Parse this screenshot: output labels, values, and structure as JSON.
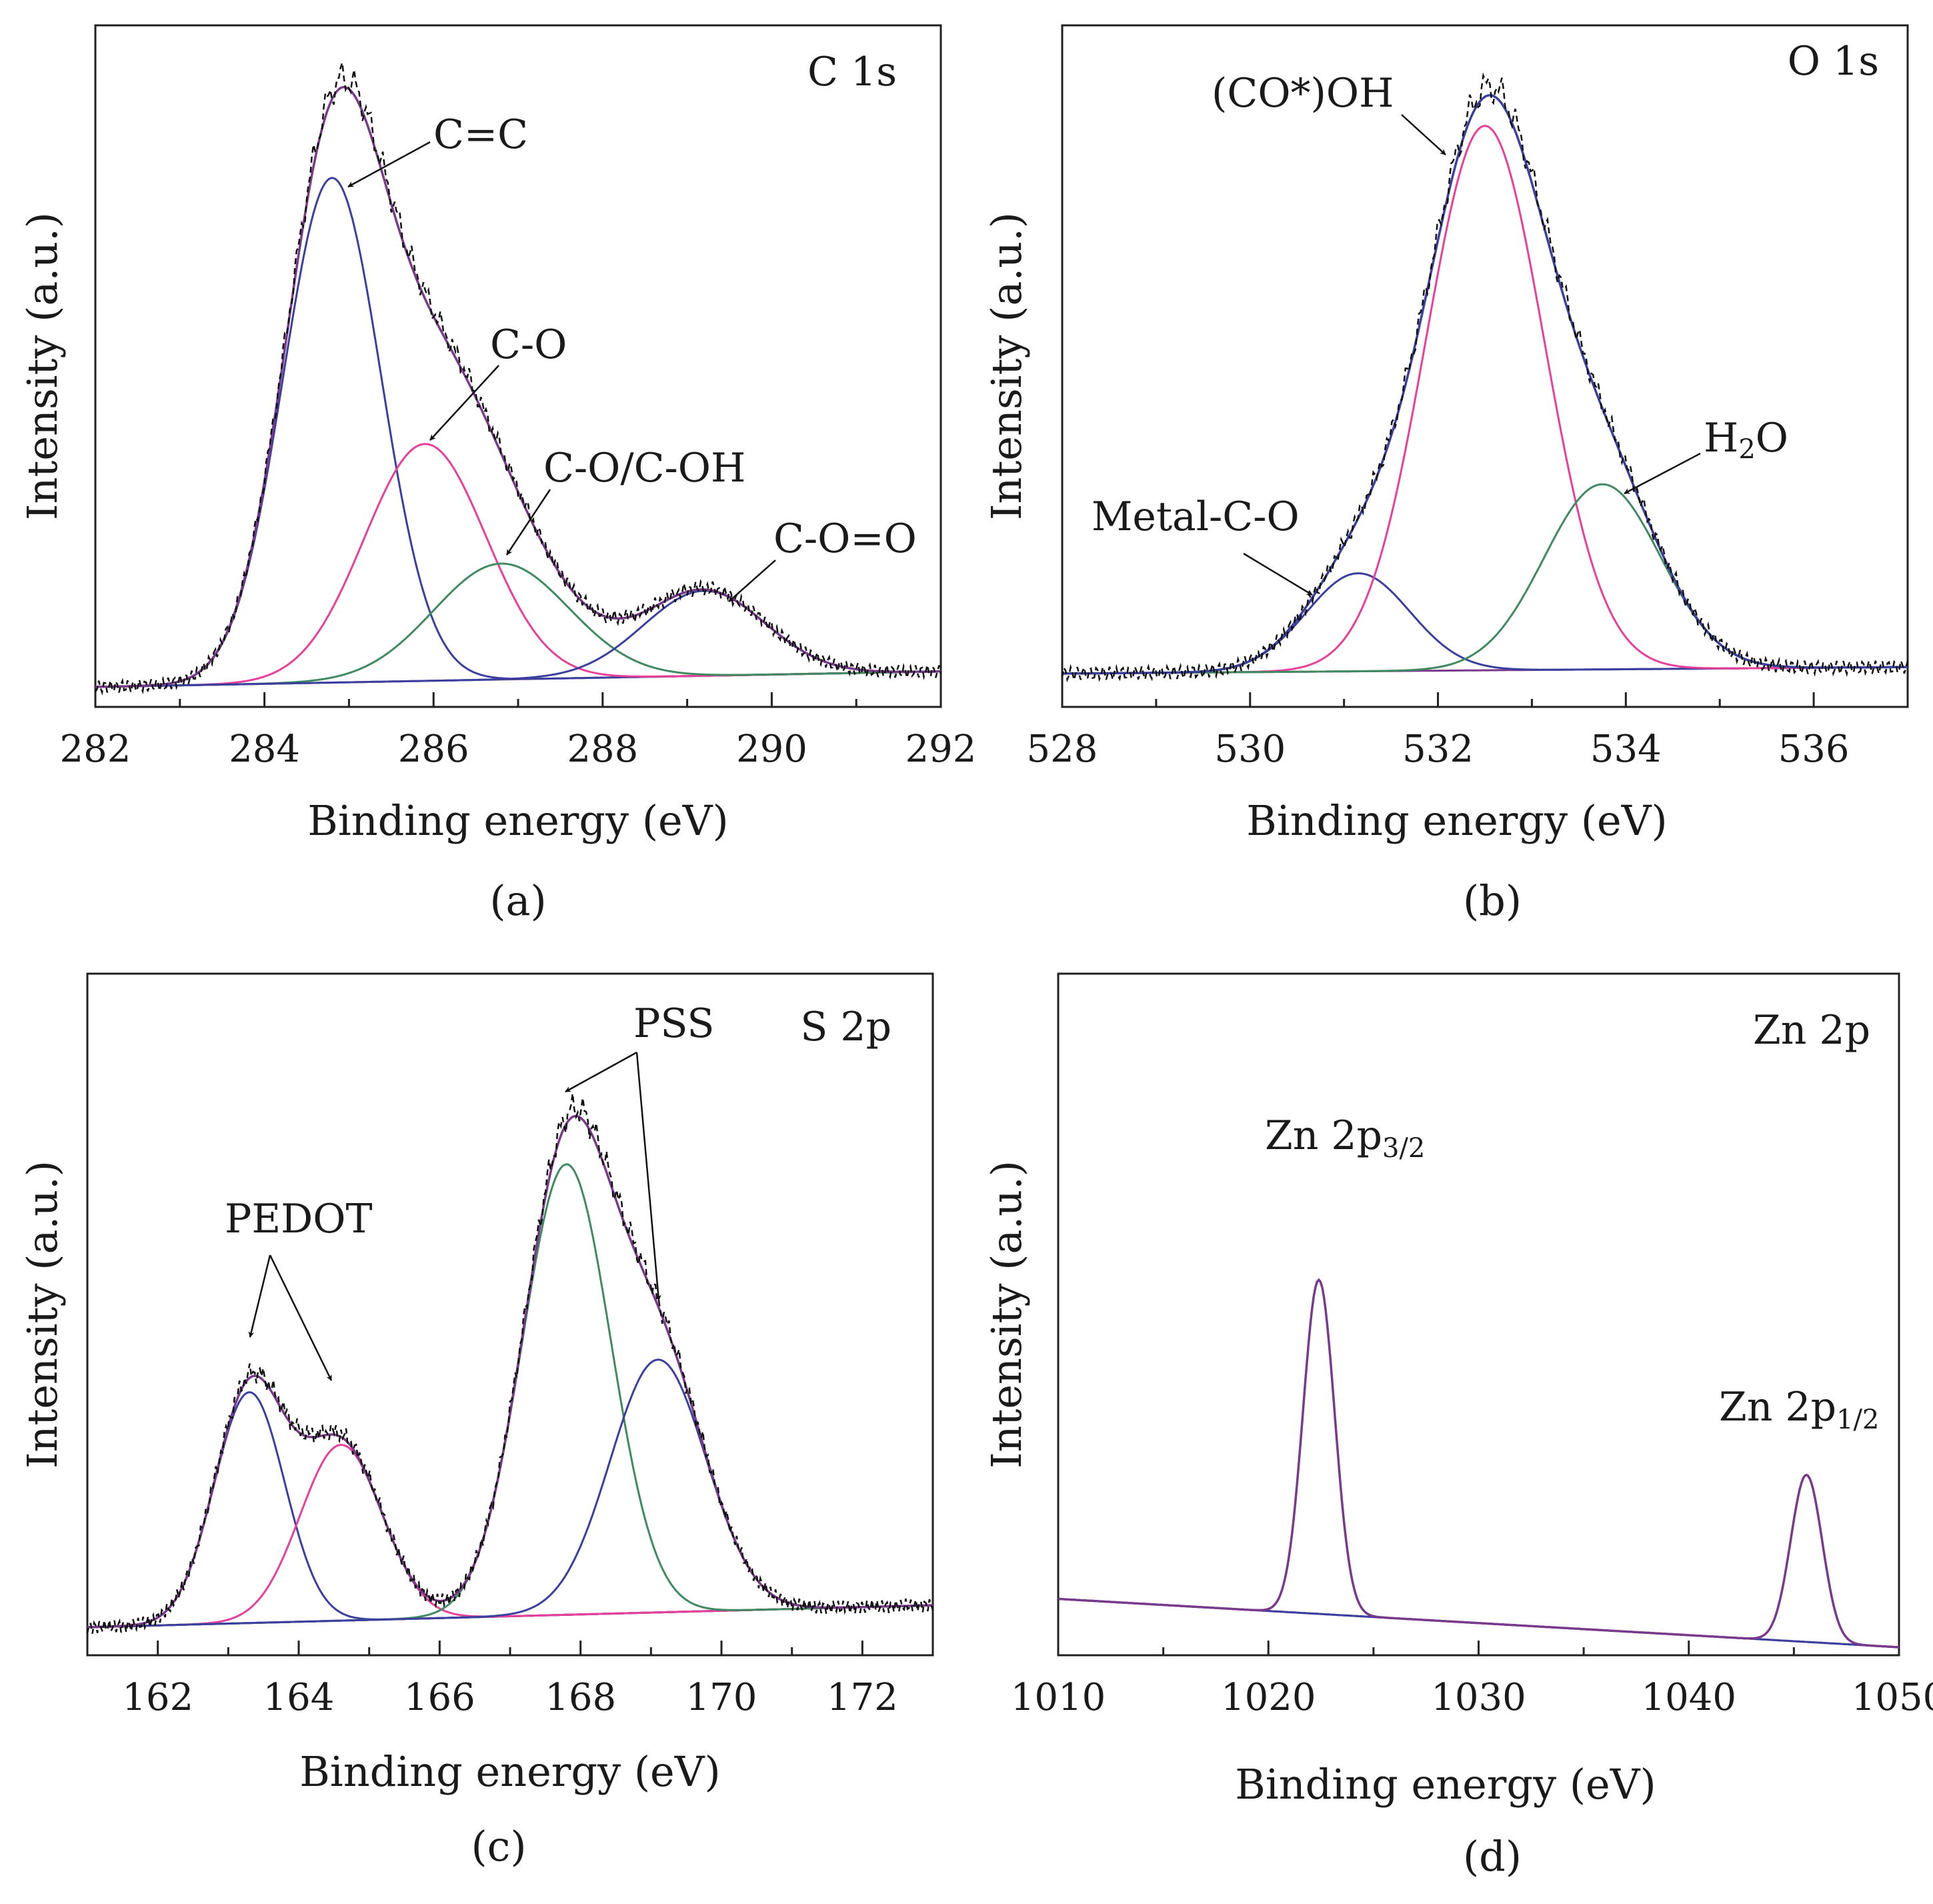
{
  "chart_data": [
    {
      "panel_id": "a",
      "type": "line",
      "corner_label": "C 1s",
      "panel_label": "(a)",
      "xlabel": "Binding energy (eV)",
      "ylabel": "Intensity (a.u.)",
      "xlim": [
        282,
        292
      ],
      "ylim": [
        0,
        1.15
      ],
      "x_ticks": [
        282,
        284,
        286,
        288,
        290,
        292
      ],
      "baseline": [
        [
          282,
          0.0
        ],
        [
          292,
          0.03
        ]
      ],
      "components": [
        {
          "name": "C=C",
          "center": 284.8,
          "height": 0.98,
          "sigma": 0.58,
          "color": "#3b3f9e"
        },
        {
          "name": "C-O",
          "center": 285.9,
          "height": 0.46,
          "sigma": 0.72,
          "color": "#e8409a"
        },
        {
          "name": "C-O/C-OH",
          "center": 286.8,
          "height": 0.225,
          "sigma": 0.8,
          "color": "#3f8a60"
        },
        {
          "name": "C-O=O",
          "center": 289.2,
          "height": 0.165,
          "sigma": 0.72,
          "color": "#3b3f9e"
        }
      ],
      "envelope_color": "#7a3a8c",
      "annotations": [
        {
          "text": "C=C",
          "target": 284.85
        },
        {
          "text": "C-O",
          "target": 285.9
        },
        {
          "text": "C-O/C-OH",
          "target": 286.8
        },
        {
          "text": "C-O=O",
          "target": 289.4
        }
      ]
    },
    {
      "panel_id": "b",
      "type": "line",
      "corner_label": "O 1s",
      "panel_label": "(b)",
      "xlabel": "Binding energy (eV)",
      "ylabel": "Intensity (a.u.)",
      "xlim": [
        528,
        537
      ],
      "ylim": [
        0,
        1.1
      ],
      "x_ticks": [
        528,
        530,
        532,
        534,
        536
      ],
      "baseline": [
        [
          528,
          0.0
        ],
        [
          537,
          0.012
        ]
      ],
      "components": [
        {
          "name": "Metal-C-O",
          "center": 531.15,
          "height": 0.18,
          "sigma": 0.55,
          "color": "#3b3f9e"
        },
        {
          "name": "(CO*)OH",
          "center": 532.5,
          "height": 1.0,
          "sigma": 0.63,
          "color": "#e8409a"
        },
        {
          "name": "H2O",
          "center": 533.75,
          "height": 0.34,
          "sigma": 0.62,
          "color": "#3f8a60"
        }
      ],
      "envelope_color": "#3b3f9e",
      "annotations": [
        {
          "text": "(CO*)OH",
          "target": 532.0
        },
        {
          "text": "H2O",
          "target": 534.0
        },
        {
          "text": "Metal-C-O",
          "target": 530.7
        }
      ]
    },
    {
      "panel_id": "c",
      "type": "line",
      "corner_label": "S 2p",
      "panel_label": "(c)",
      "xlabel": "Binding energy (eV)",
      "ylabel": "Intensity (a.u.)",
      "xlim": [
        161,
        173
      ],
      "ylim": [
        0,
        1.05
      ],
      "x_ticks": [
        162,
        164,
        166,
        168,
        170,
        172
      ],
      "baseline": [
        [
          161,
          0.0
        ],
        [
          173,
          0.04
        ]
      ],
      "components": [
        {
          "name": "PEDOT",
          "center": 163.3,
          "height": 0.42,
          "sigma": 0.5,
          "color": "#3b3f9e"
        },
        {
          "name": "PEDOT",
          "center": 164.6,
          "height": 0.32,
          "sigma": 0.58,
          "color": "#e8409a"
        },
        {
          "name": "PSS",
          "center": 167.8,
          "height": 0.82,
          "sigma": 0.63,
          "color": "#3f8a60"
        },
        {
          "name": "PSS",
          "center": 169.1,
          "height": 0.46,
          "sigma": 0.68,
          "color": "#3b3f9e"
        }
      ],
      "envelope_color": "#7a3a8c",
      "annotations": [
        {
          "text": "PEDOT",
          "targets": [
            163.3,
            164.5
          ]
        },
        {
          "text": "PSS",
          "targets": [
            167.7,
            169.1
          ]
        }
      ]
    },
    {
      "panel_id": "d",
      "type": "line",
      "corner_label": "Zn 2p",
      "panel_label": "(d)",
      "xlabel": "Binding energy (eV)",
      "ylabel": "Intensity (a.u.)",
      "xlim": [
        1010,
        1050
      ],
      "ylim": [
        0,
        1.1
      ],
      "x_ticks": [
        1010,
        1020,
        1030,
        1040,
        1050
      ],
      "baseline": [
        [
          1010,
          0.11
        ],
        [
          1050,
          0.0
        ]
      ],
      "components": [
        {
          "name": "Zn 2p3/2",
          "center": 1022.4,
          "height": 0.76,
          "sigma": 0.75,
          "color": "#3b3f9e"
        },
        {
          "name": "Zn 2p1/2",
          "center": 1045.6,
          "height": 0.38,
          "sigma": 0.75,
          "color": "#3b3f9e"
        }
      ],
      "envelope_color": "#7a3a8c",
      "annotations": [
        {
          "text_main": "Zn 2p",
          "text_sub": "3/2",
          "target": 1022.4
        },
        {
          "text_main": "Zn 2p",
          "text_sub": "1/2",
          "target": 1045.6
        }
      ]
    }
  ]
}
